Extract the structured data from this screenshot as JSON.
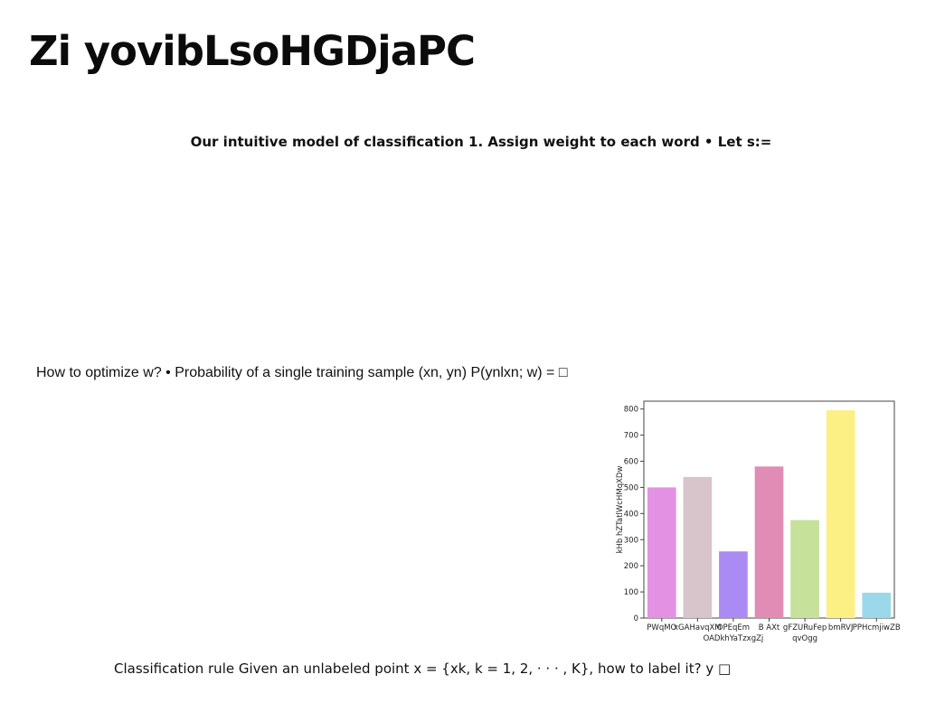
{
  "slide": {
    "title": "Zi yovibLsoHGDjaPC",
    "subtitle": "Our intuitive model of classification 1. Assign weight to each word • Let s:=",
    "text1": "How to optimize w? • Probability of a single training sample (xn, yn) P(ynlxn; w) = □",
    "text2": "Classification rule Given an unlabeled point x = {xk, k = 1, 2, · · · , K}, how to label it? y □"
  },
  "chart_data": {
    "type": "bar",
    "categories": [
      "PWqMO",
      "xGAHavqXM",
      "OPEqEm\nOADkhYaTzxgZj",
      "B AXt",
      "gFZURuFep\nqvOgg",
      "bmRVJ",
      "PPHcmjiwZB"
    ],
    "values": [
      500,
      540,
      255,
      580,
      375,
      795,
      97
    ],
    "colors": [
      "#e391e3",
      "#d7c5cb",
      "#a98bf3",
      "#e08cb4",
      "#c5e19a",
      "#fcef83",
      "#9bd8ea"
    ],
    "ylabel": "kHb hZTatlWcHMqXDw",
    "xlabel": "",
    "ylim": [
      0,
      830
    ],
    "yticks": [
      0,
      100,
      200,
      300,
      400,
      500,
      600,
      700,
      800
    ],
    "grid": false
  }
}
